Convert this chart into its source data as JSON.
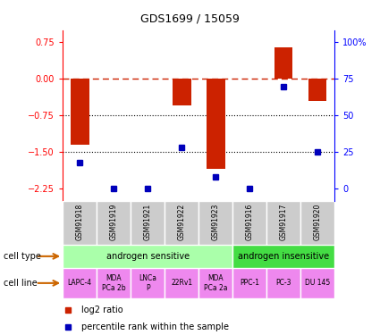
{
  "title": "GDS1699 / 15059",
  "samples": [
    "GSM91918",
    "GSM91919",
    "GSM91921",
    "GSM91922",
    "GSM91923",
    "GSM91916",
    "GSM91917",
    "GSM91920"
  ],
  "log2_ratio": [
    -1.35,
    0.0,
    0.0,
    -0.55,
    -1.85,
    0.0,
    0.65,
    -0.45
  ],
  "percentile_rank": [
    18,
    0,
    0,
    28,
    8,
    0,
    70,
    25
  ],
  "ylim_left": [
    -2.5,
    1.0
  ],
  "yticks_left": [
    0.75,
    0.0,
    -0.75,
    -1.5,
    -2.25
  ],
  "yticks_right": [
    100,
    75,
    50,
    25,
    0
  ],
  "bar_color": "#cc2200",
  "dot_color": "#0000bb",
  "cell_type_groups": [
    {
      "label": "androgen sensitive",
      "start": 0,
      "end": 5,
      "color": "#aaffaa"
    },
    {
      "label": "androgen insensitive",
      "start": 5,
      "end": 8,
      "color": "#44dd44"
    }
  ],
  "cell_lines": [
    "LAPC-4",
    "MDA\nPCa 2b",
    "LNCa\nP",
    "22Rv1",
    "MDA\nPCa 2a",
    "PPC-1",
    "PC-3",
    "DU 145"
  ],
  "cell_line_color": "#ee88ee",
  "sample_box_color": "#cccccc",
  "legend_red_label": "log2 ratio",
  "legend_blue_label": "percentile rank within the sample",
  "arrow_color": "#cc6600",
  "bg_color": "#ffffff"
}
